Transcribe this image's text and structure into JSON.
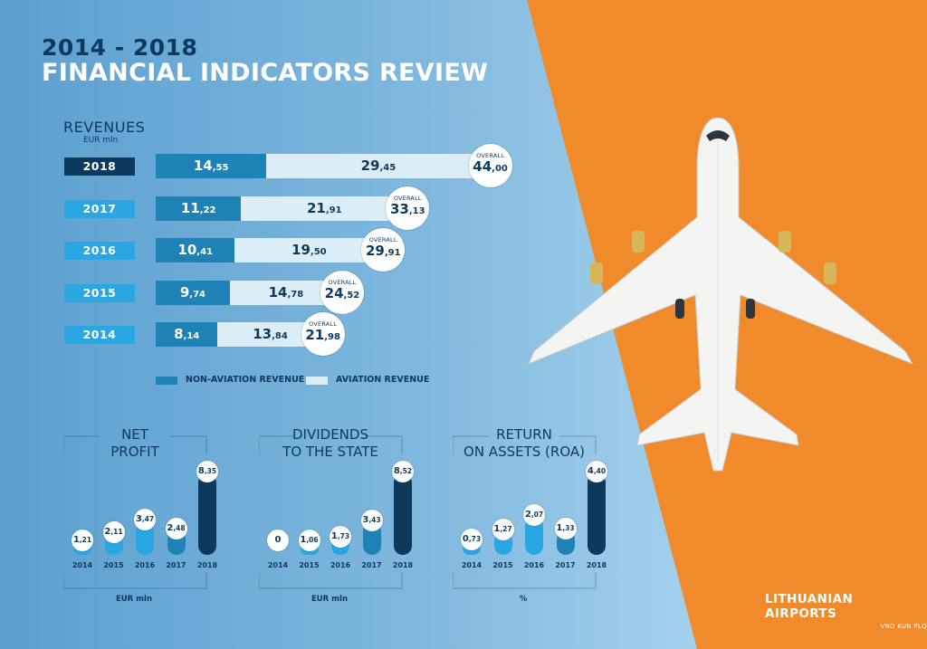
{
  "title": {
    "line1": "2014 - 2018",
    "line2": "FINANCIAL INDICATORS REVIEW"
  },
  "colors": {
    "orange": "#f08a2a",
    "dark_blue": "#0d3a5c",
    "mid_blue": "#1e82b7",
    "light_blue": "#2aa6e3",
    "pale": "#dbeef7"
  },
  "chart_data": [
    {
      "type": "bar",
      "title": "REVENUES",
      "unit": "EUR mln",
      "categories": [
        "2018",
        "2017",
        "2016",
        "2015",
        "2014"
      ],
      "series": [
        {
          "name": "NON-AVIATION REVENUE",
          "values": [
            14.55,
            11.22,
            10.41,
            9.74,
            8.14
          ],
          "labels": [
            [
              "14",
              ",55"
            ],
            [
              "11",
              ",22"
            ],
            [
              "10",
              ",41"
            ],
            [
              "9",
              ",74"
            ],
            [
              "8",
              ",14"
            ]
          ]
        },
        {
          "name": "AVIATION REVENUE",
          "values": [
            29.45,
            21.91,
            19.5,
            14.78,
            13.84
          ],
          "labels": [
            [
              "29",
              ",45"
            ],
            [
              "21",
              ",91"
            ],
            [
              "19",
              ",50"
            ],
            [
              "14",
              ",78"
            ],
            [
              "13",
              ",84"
            ]
          ]
        }
      ],
      "overall_label": "OVERALL",
      "overall": [
        44.0,
        33.13,
        29.91,
        24.52,
        21.98
      ],
      "overall_labels": [
        [
          "44",
          ",00"
        ],
        [
          "33",
          ",13"
        ],
        [
          "29",
          ",91"
        ],
        [
          "24",
          ",52"
        ],
        [
          "21",
          ",98"
        ]
      ]
    },
    {
      "type": "bar",
      "title": [
        "NET",
        "PROFIT"
      ],
      "unit": "EUR mln",
      "categories": [
        "2014",
        "2015",
        "2016",
        "2017",
        "2018"
      ],
      "values": [
        1.21,
        2.11,
        3.47,
        2.48,
        8.35
      ],
      "labels": [
        [
          "1",
          ",21"
        ],
        [
          "2",
          ",11"
        ],
        [
          "3",
          ",47"
        ],
        [
          "2",
          ",48"
        ],
        [
          "8",
          ",35"
        ]
      ]
    },
    {
      "type": "bar",
      "title": [
        "DIVIDENDS",
        "TO THE STATE"
      ],
      "unit": "EUR mln",
      "categories": [
        "2014",
        "2015",
        "2016",
        "2017",
        "2018"
      ],
      "values": [
        0,
        1.06,
        1.73,
        3.43,
        8.52
      ],
      "labels": [
        [
          "0",
          ""
        ],
        [
          "1",
          ",06"
        ],
        [
          "1",
          ",73"
        ],
        [
          "3",
          ",43"
        ],
        [
          "8",
          ",52"
        ]
      ]
    },
    {
      "type": "bar",
      "title": [
        "RETURN",
        "ON ASSETS (ROA)"
      ],
      "unit": "%",
      "categories": [
        "2014",
        "2015",
        "2016",
        "2017",
        "2018"
      ],
      "values": [
        0.73,
        1.27,
        2.07,
        1.33,
        4.4
      ],
      "labels": [
        [
          "0",
          ",73"
        ],
        [
          "1",
          ",27"
        ],
        [
          "2",
          ",07"
        ],
        [
          "1",
          ",33"
        ],
        [
          "4",
          ",40"
        ]
      ]
    }
  ],
  "logo": {
    "name": "LITHUANIAN AIRPORTS",
    "codes": "VNO KUN PLQ"
  }
}
